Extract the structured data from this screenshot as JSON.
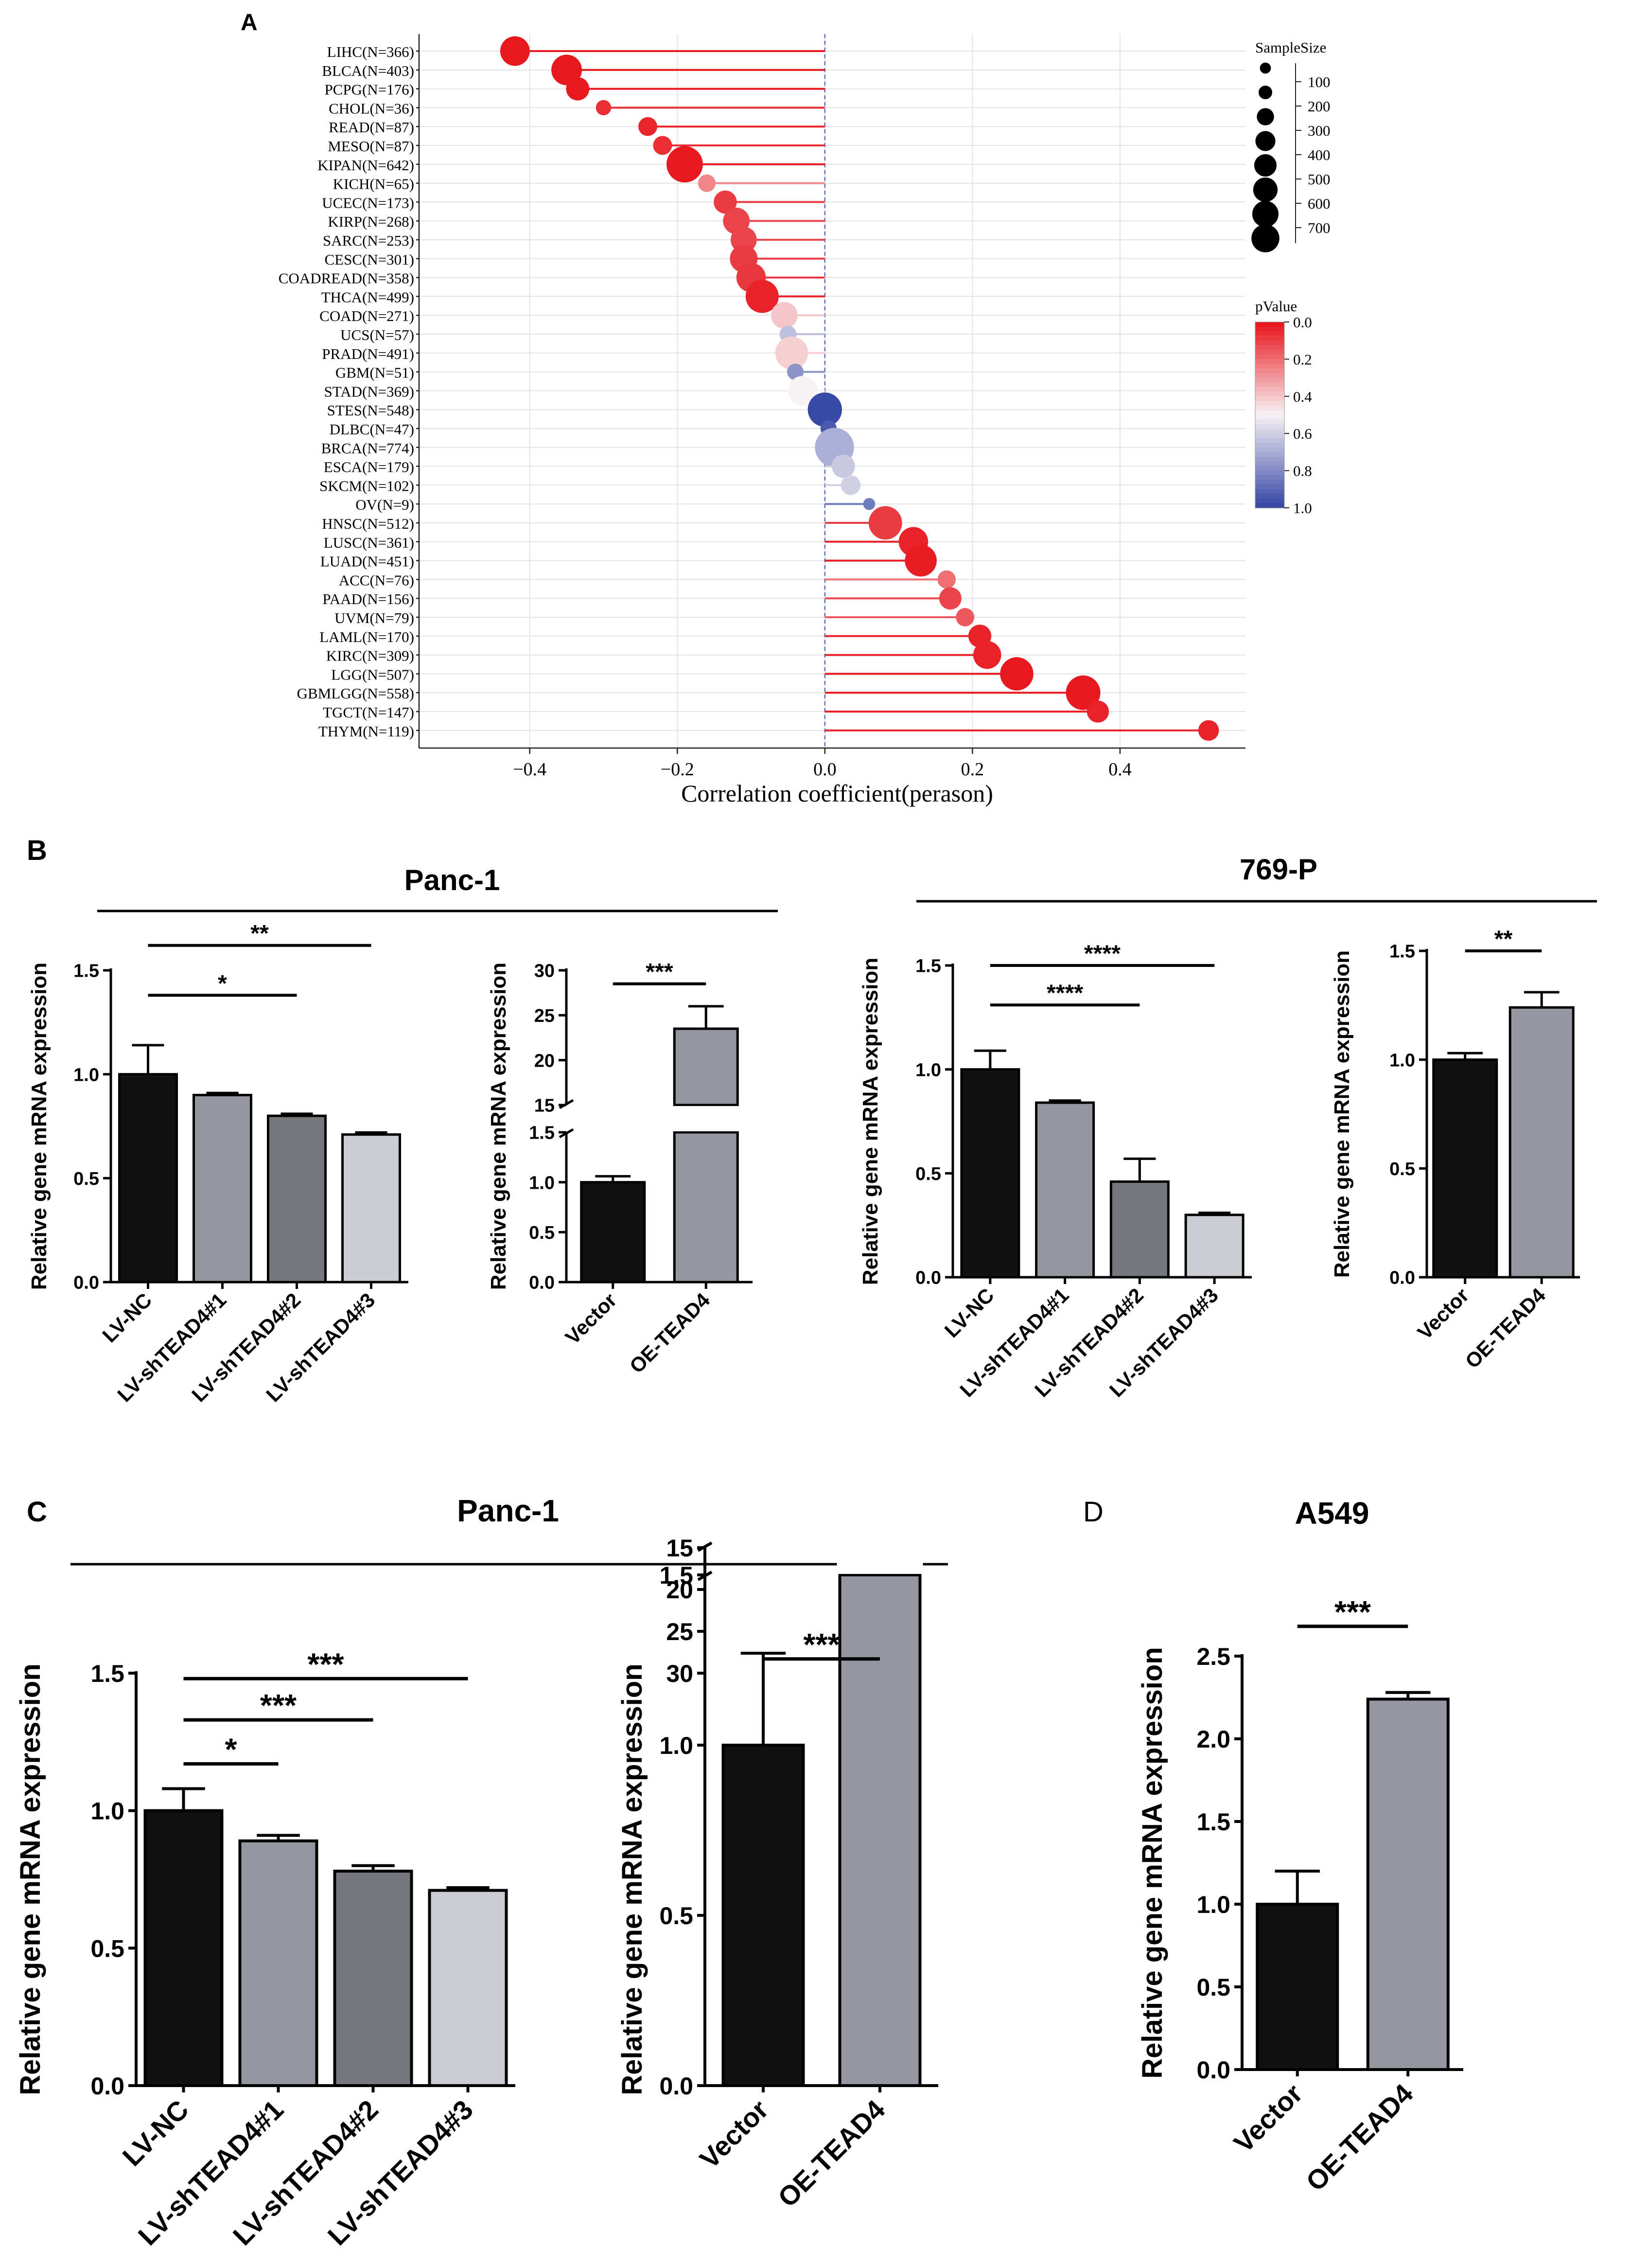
{
  "panels": {
    "A": {
      "letter": "A",
      "chart_data": {
        "type": "scatter",
        "subtype": "lollipop",
        "xlabel": "Correlation coefficient(perason)",
        "xlim": [
          -0.55,
          0.57
        ],
        "xticks": [
          -0.4,
          -0.2,
          0.0,
          0.2,
          0.4
        ],
        "xtick_labels": [
          "−0.4",
          "−0.2",
          "0.0",
          "0.2",
          "0.4"
        ],
        "categories": [
          "LIHC(N=366)",
          "BLCA(N=403)",
          "PCPG(N=176)",
          "CHOL(N=36)",
          "READ(N=87)",
          "MESO(N=87)",
          "KIPAN(N=642)",
          "KICH(N=65)",
          "UCEC(N=173)",
          "KIRP(N=268)",
          "SARC(N=253)",
          "CESC(N=301)",
          "COADREAD(N=358)",
          "THCA(N=499)",
          "COAD(N=271)",
          "UCS(N=57)",
          "PRAD(N=491)",
          "GBM(N=51)",
          "STAD(N=369)",
          "STES(N=548)",
          "DLBC(N=47)",
          "BRCA(N=774)",
          "ESCA(N=179)",
          "SKCM(N=102)",
          "OV(N=9)",
          "HNSC(N=512)",
          "LUSC(N=361)",
          "LUAD(N=451)",
          "ACC(N=76)",
          "PAAD(N=156)",
          "UVM(N=79)",
          "LAML(N=170)",
          "KIRC(N=309)",
          "LGG(N=507)",
          "GBMLGG(N=558)",
          "TGCT(N=147)",
          "THYM(N=119)"
        ],
        "values": [
          -0.42,
          -0.35,
          -0.335,
          -0.3,
          -0.24,
          -0.22,
          -0.19,
          -0.16,
          -0.135,
          -0.12,
          -0.11,
          -0.11,
          -0.1,
          -0.085,
          -0.055,
          -0.05,
          -0.045,
          -0.04,
          -0.03,
          0.0,
          0.005,
          0.013,
          0.025,
          0.035,
          0.06,
          0.082,
          0.12,
          0.13,
          0.165,
          0.17,
          0.19,
          0.21,
          0.22,
          0.26,
          0.35,
          0.37,
          0.52
        ],
        "sample_sizes": [
          366,
          403,
          176,
          36,
          87,
          87,
          642,
          65,
          173,
          268,
          253,
          301,
          358,
          499,
          271,
          57,
          491,
          51,
          369,
          548,
          47,
          774,
          179,
          102,
          9,
          512,
          361,
          451,
          76,
          156,
          79,
          170,
          309,
          507,
          558,
          147,
          119
        ],
        "pvalues": [
          0.0,
          0.0,
          0.0,
          0.05,
          0.03,
          0.05,
          0.0,
          0.25,
          0.08,
          0.1,
          0.1,
          0.08,
          0.07,
          0.02,
          0.4,
          0.65,
          0.42,
          0.78,
          0.5,
          1.0,
          0.95,
          0.7,
          0.62,
          0.6,
          0.85,
          0.08,
          0.02,
          0.01,
          0.2,
          0.1,
          0.15,
          0.02,
          0.02,
          0.0,
          0.0,
          0.02,
          0.02
        ],
        "size_legend": {
          "title": "SampleSize",
          "labels": [
            "100",
            "200",
            "300",
            "400",
            "500",
            "600",
            "700"
          ]
        },
        "color_legend": {
          "title": "pValue",
          "labels": [
            "0.0",
            "0.2",
            "0.4",
            "0.6",
            "0.8",
            "1.0"
          ],
          "low_color": "#e8181f",
          "mid_color": "#f7f2f4",
          "high_color": "#3849a6"
        }
      }
    },
    "B": {
      "letter": "B",
      "groups": [
        {
          "title": "Panc-1"
        },
        {
          "title": "769-P"
        }
      ],
      "charts": [
        {
          "type": "bar",
          "ylabel": "Relative gene mRNA expression",
          "ylim": [
            0,
            1.5
          ],
          "yticks": [
            0,
            0.5,
            1.0,
            1.5
          ],
          "ytick_labels": [
            "0.0",
            "0.5",
            "1.0",
            "1.5"
          ],
          "categories": [
            "LV-NC",
            "LV-shTEAD4#1",
            "LV-shTEAD4#2",
            "LV-shTEAD4#3"
          ],
          "values": [
            1.0,
            0.9,
            0.8,
            0.71
          ],
          "errors": [
            0.14,
            0.01,
            0.01,
            0.01
          ],
          "bar_colors": [
            "#111111",
            "#94979f",
            "#76787e",
            "#cccdd2"
          ],
          "significance": [
            {
              "from": 0,
              "to": 3,
              "level": 1.62,
              "label": "**"
            },
            {
              "from": 0,
              "to": 2,
              "level": 1.38,
              "label": "*"
            }
          ]
        },
        {
          "type": "bar",
          "ylabel": "Relative gene mRNA expression",
          "broken_axis": true,
          "ylim_low": [
            0,
            1.5
          ],
          "ylim_high": [
            15,
            30
          ],
          "yticks_low_labels": [
            "0.0",
            "0.5",
            "1.0",
            "1.5"
          ],
          "yticks_high_labels": [
            "15",
            "20",
            "25",
            "30"
          ],
          "categories": [
            "Vector",
            "OE-TEAD4"
          ],
          "values": [
            1.0,
            23.5
          ],
          "errors": [
            0.06,
            2.5
          ],
          "bar_colors": [
            "#111111",
            "#94979f"
          ],
          "significance": [
            {
              "from": 0,
              "to": 1,
              "level": 28.5,
              "label": "***"
            }
          ]
        },
        {
          "type": "bar",
          "ylabel": "Relative gene mRNA expression",
          "ylim": [
            0,
            1.5
          ],
          "yticks": [
            0,
            0.5,
            1.0,
            1.5
          ],
          "ytick_labels": [
            "0.0",
            "0.5",
            "1.0",
            "1.5"
          ],
          "categories": [
            "LV-NC",
            "LV-shTEAD4#1",
            "LV-shTEAD4#2",
            "LV-shTEAD4#3"
          ],
          "values": [
            1.0,
            0.84,
            0.46,
            0.3
          ],
          "errors": [
            0.09,
            0.01,
            0.11,
            0.01
          ],
          "bar_colors": [
            "#111111",
            "#94979f",
            "#76787e",
            "#cccdd2"
          ],
          "significance": [
            {
              "from": 0,
              "to": 3,
              "level": 1.5,
              "label": "****"
            },
            {
              "from": 0,
              "to": 2,
              "level": 1.31,
              "label": "****"
            }
          ]
        },
        {
          "type": "bar",
          "ylabel": "Relative gene mRNA expression",
          "ylim": [
            0,
            1.5
          ],
          "yticks": [
            0,
            0.5,
            1.0,
            1.5
          ],
          "ytick_labels": [
            "0.0",
            "0.5",
            "1.0",
            "1.5"
          ],
          "categories": [
            "Vector",
            "OE-TEAD4"
          ],
          "values": [
            1.0,
            1.24
          ],
          "errors": [
            0.03,
            0.07
          ],
          "bar_colors": [
            "#111111",
            "#94979f"
          ],
          "significance": [
            {
              "from": 0,
              "to": 1,
              "level": 1.5,
              "label": "**"
            }
          ]
        }
      ]
    },
    "C": {
      "letter": "C",
      "title": "Panc-1",
      "charts": [
        {
          "type": "bar",
          "ylabel": "Relative gene mRNA expression",
          "ylim": [
            0,
            1.5
          ],
          "yticks": [
            0,
            0.5,
            1.0,
            1.5
          ],
          "ytick_labels": [
            "0.0",
            "0.5",
            "1.0",
            "1.5"
          ],
          "categories": [
            "LV-NC",
            "LV-shTEAD4#1",
            "LV-shTEAD4#2",
            "LV-shTEAD4#3"
          ],
          "values": [
            1.0,
            0.89,
            0.78,
            0.71
          ],
          "errors": [
            0.08,
            0.02,
            0.02,
            0.01
          ],
          "bar_colors": [
            "#111111",
            "#94979f",
            "#76787e",
            "#cccdd2"
          ],
          "significance": [
            {
              "from": 0,
              "to": 3,
              "level": 1.48,
              "label": "***"
            },
            {
              "from": 0,
              "to": 2,
              "level": 1.33,
              "label": "***"
            },
            {
              "from": 0,
              "to": 1,
              "level": 1.17,
              "label": "*"
            }
          ]
        },
        {
          "type": "bar",
          "ylabel": "Relative gene mRNA expression",
          "broken_axis": true,
          "ylim_low": [
            0,
            1.5
          ],
          "ylim_high": [
            15,
            30
          ],
          "yticks_low_labels": [
            "0.0",
            "0.5",
            "1.0",
            "1.5"
          ],
          "yticks_high_labels": [
            "15",
            "20",
            "25",
            "30"
          ],
          "categories": [
            "Vector",
            "OE-TEAD4"
          ],
          "values": [
            1.0,
            23.8
          ],
          "errors": [
            0.27,
            2.6
          ],
          "bar_colors": [
            "#111111",
            "#94979f"
          ],
          "significance": [
            {
              "from": 0,
              "to": 1,
              "level": 28.3,
              "label": "***"
            }
          ]
        }
      ]
    },
    "D": {
      "letter": "D",
      "title": "A549",
      "chart": {
        "type": "bar",
        "ylabel": "Relative gene mRNA expression",
        "ylim": [
          0,
          2.5
        ],
        "yticks": [
          0,
          0.5,
          1.0,
          1.5,
          2.0,
          2.5
        ],
        "ytick_labels": [
          "0.0",
          "0.5",
          "1.0",
          "1.5",
          "2.0",
          "2.5"
        ],
        "categories": [
          "Vector",
          "OE-TEAD4"
        ],
        "values": [
          1.0,
          2.24
        ],
        "errors": [
          0.2,
          0.04
        ],
        "bar_colors": [
          "#111111",
          "#94979f"
        ],
        "significance": [
          {
            "from": 0,
            "to": 1,
            "level": 2.68,
            "label": "***"
          }
        ]
      }
    }
  }
}
